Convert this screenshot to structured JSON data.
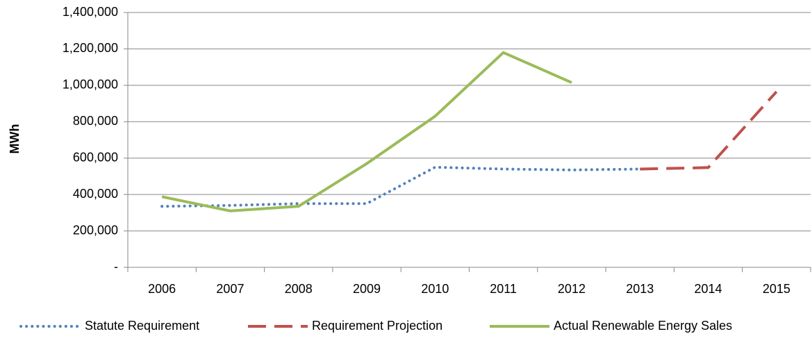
{
  "chart_data": {
    "type": "line",
    "y_label": "MWh",
    "categories": [
      "2006",
      "2007",
      "2008",
      "2009",
      "2010",
      "2011",
      "2012",
      "2013",
      "2014",
      "2015"
    ],
    "series": [
      {
        "name": "Statute Requirement",
        "color": "#4f81bd",
        "dash": "dotted",
        "values": [
          335000,
          340000,
          350000,
          350000,
          550000,
          540000,
          535000,
          540000,
          null,
          null
        ]
      },
      {
        "name": "Requirement Projection",
        "color": "#c0504d",
        "dash": "dashed",
        "values": [
          null,
          null,
          null,
          null,
          null,
          null,
          null,
          540000,
          548000,
          965000
        ]
      },
      {
        "name": "Actual Renewable Energy Sales",
        "color": "#9bbb59",
        "dash": "solid",
        "values": [
          388000,
          310000,
          335000,
          570000,
          830000,
          1180000,
          1015000,
          null,
          null,
          null
        ]
      }
    ],
    "ylim": [
      0,
      1400000
    ],
    "yticks": [
      {
        "value": 0,
        "label": "-"
      },
      {
        "value": 200000,
        "label": "200,000"
      },
      {
        "value": 400000,
        "label": "400,000"
      },
      {
        "value": 600000,
        "label": "600,000"
      },
      {
        "value": 800000,
        "label": "800,000"
      },
      {
        "value": 1000000,
        "label": "1,000,000"
      },
      {
        "value": 1200000,
        "label": "1,200,000"
      },
      {
        "value": 1400000,
        "label": "1,400,000"
      }
    ],
    "grid": true,
    "legend": "bottom"
  }
}
